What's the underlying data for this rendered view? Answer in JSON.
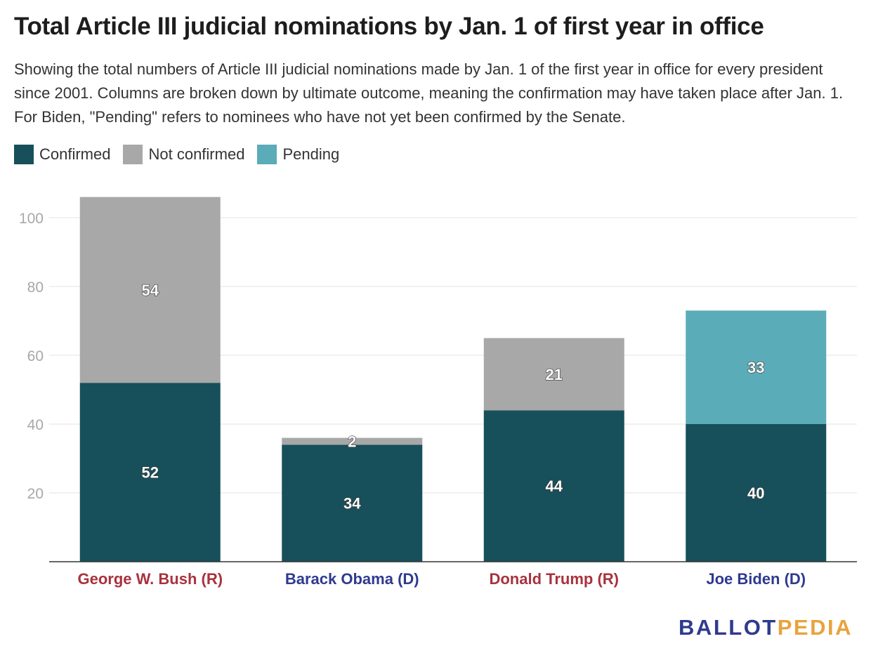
{
  "title": "Total Article III judicial nominations by Jan. 1 of first year in office",
  "subtitle": "Showing the total numbers of Article III judicial nominations made by Jan. 1 of the first year in office for every president since 2001. Columns are broken down by ultimate outcome, meaning the confirmation may have taken place after Jan. 1. For Biden, \"Pending\" refers to nominees who have not yet been confirmed by the Senate.",
  "legend": [
    {
      "label": "Confirmed",
      "color": "#17505a"
    },
    {
      "label": "Not confirmed",
      "color": "#a8a8a8"
    },
    {
      "label": "Pending",
      "color": "#5aacb8"
    }
  ],
  "brand": {
    "part1": "BALLOT",
    "part2": "PEDIA"
  },
  "chart_data": {
    "type": "bar",
    "stacked": true,
    "categories": [
      "George W. Bush (R)",
      "Barack Obama (D)",
      "Donald Trump (R)",
      "Joe Biden (D)"
    ],
    "category_colors": [
      "#a8323e",
      "#2f3a8f",
      "#a8323e",
      "#2f3a8f"
    ],
    "series": [
      {
        "name": "Confirmed",
        "color": "#17505a",
        "values": [
          52,
          34,
          44,
          40
        ]
      },
      {
        "name": "Not confirmed",
        "color": "#a8a8a8",
        "values": [
          54,
          2,
          21,
          0
        ]
      },
      {
        "name": "Pending",
        "color": "#5aacb8",
        "values": [
          0,
          0,
          0,
          33
        ]
      }
    ],
    "yticks": [
      20,
      40,
      60,
      80,
      100
    ],
    "ylim": [
      0,
      106
    ],
    "grid": true,
    "legend_position": "top-left"
  }
}
